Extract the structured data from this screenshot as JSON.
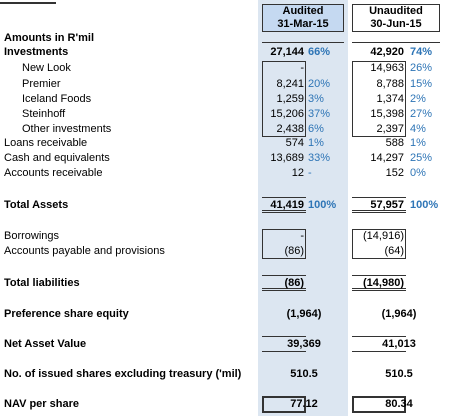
{
  "header": {
    "title": "Amounts in R'mil",
    "columns": [
      {
        "line1": "Audited",
        "line2": "31-Mar-15"
      },
      {
        "line1": "Unaudited",
        "line2": "30-Jun-15"
      }
    ]
  },
  "table": {
    "rows": [
      {
        "label": "Investments",
        "cells": [
          [
            "27,144",
            "66%"
          ],
          [
            "42,920",
            "74%"
          ]
        ]
      },
      {
        "label": "New Look",
        "cells": [
          [
            "-",
            null
          ],
          [
            "14,963",
            "26%"
          ]
        ]
      },
      {
        "label": "Premier",
        "cells": [
          [
            "8,241",
            "20%"
          ],
          [
            "8,788",
            "15%"
          ]
        ]
      },
      {
        "label": "Iceland Foods",
        "cells": [
          [
            "1,259",
            "3%"
          ],
          [
            "1,374",
            "2%"
          ]
        ]
      },
      {
        "label": "Steinhoff",
        "cells": [
          [
            "15,206",
            "37%"
          ],
          [
            "15,398",
            "27%"
          ]
        ]
      },
      {
        "label": "Other investments",
        "cells": [
          [
            "2,438",
            "6%"
          ],
          [
            "2,397",
            "4%"
          ]
        ]
      },
      {
        "label": "Loans receivable",
        "cells": [
          [
            "574",
            "1%"
          ],
          [
            "588",
            "1%"
          ]
        ]
      },
      {
        "label": "Cash and equivalents",
        "cells": [
          [
            "13,689",
            "33%"
          ],
          [
            "14,297",
            "25%"
          ]
        ]
      },
      {
        "label": "Accounts receivable",
        "cells": [
          [
            "12",
            "-"
          ],
          [
            "152",
            "0%"
          ]
        ]
      },
      {
        "label": "Total Assets",
        "cells": [
          [
            "41,419",
            "100%"
          ],
          [
            "57,957",
            "100%"
          ]
        ]
      },
      {
        "label": "Borrowings",
        "cells": [
          [
            "-",
            null
          ],
          [
            "(14,916)",
            null
          ]
        ]
      },
      {
        "label": "Accounts payable and provisions",
        "cells": [
          [
            "(86)",
            null
          ],
          [
            "(64)",
            null
          ]
        ]
      },
      {
        "label": "Total liabilities",
        "cells": [
          [
            "(86)",
            null
          ],
          [
            "(14,980)",
            null
          ]
        ]
      },
      {
        "label": "Preference share equity",
        "cells": [
          [
            "(1,964)",
            null
          ],
          [
            "(1,964)",
            null
          ]
        ]
      },
      {
        "label": "Net Asset Value",
        "cells": [
          [
            "39,369",
            null
          ],
          [
            "41,013",
            null
          ]
        ]
      },
      {
        "label": "No. of issued shares excluding treasury ('mil)",
        "cells": [
          [
            "510.5",
            null
          ],
          [
            "510.5",
            null
          ]
        ]
      },
      {
        "label": "NAV per share",
        "cells": [
          [
            "77.12",
            null
          ],
          [
            "80.34",
            null
          ]
        ]
      }
    ]
  }
}
